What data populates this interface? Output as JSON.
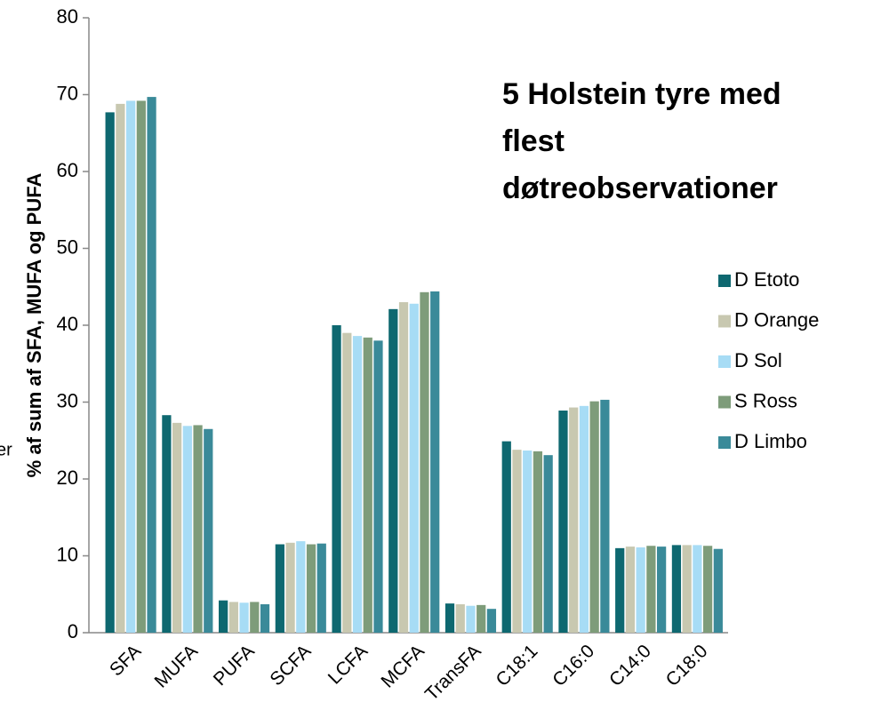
{
  "chart_data": {
    "type": "bar",
    "title": [
      "5 Holstein tyre med",
      "flest",
      "døtreobservationer"
    ],
    "y_label": "% af sum af SFA, MUFA og PUFA",
    "side_note": "er",
    "categories": [
      "SFA",
      "MUFA",
      "PUFA",
      "SCFA",
      "LCFA",
      "MCFA",
      "TransFA",
      "C18:1",
      "C16:0",
      "C14:0",
      "C18:0"
    ],
    "series": [
      {
        "name": "D Etoto",
        "color": "#0e6870",
        "values": [
          67.7,
          28.3,
          4.2,
          11.5,
          40.0,
          42.1,
          3.8,
          24.9,
          28.9,
          11.0,
          11.4
        ]
      },
      {
        "name": "D Orange",
        "color": "#c8c8b0",
        "values": [
          68.8,
          27.3,
          4.0,
          11.7,
          39.0,
          43.0,
          3.7,
          23.8,
          29.3,
          11.2,
          11.4
        ]
      },
      {
        "name": "D Sol",
        "color": "#a7dcf5",
        "values": [
          69.2,
          26.9,
          3.9,
          11.9,
          38.6,
          42.8,
          3.5,
          23.7,
          29.5,
          11.1,
          11.4
        ]
      },
      {
        "name": "S Ross",
        "color": "#7e9c7a",
        "values": [
          69.2,
          27.0,
          4.0,
          11.5,
          38.4,
          44.3,
          3.6,
          23.6,
          30.1,
          11.3,
          11.3
        ]
      },
      {
        "name": "D Limbo",
        "color": "#3a8a99",
        "values": [
          69.7,
          26.5,
          3.7,
          11.6,
          38.0,
          44.4,
          3.1,
          23.1,
          30.3,
          11.2,
          10.9
        ]
      }
    ],
    "ylim": [
      0,
      80
    ],
    "yticks": [
      0,
      10,
      20,
      30,
      40,
      50,
      60,
      70,
      80
    ],
    "grid": false,
    "legend": "right"
  }
}
